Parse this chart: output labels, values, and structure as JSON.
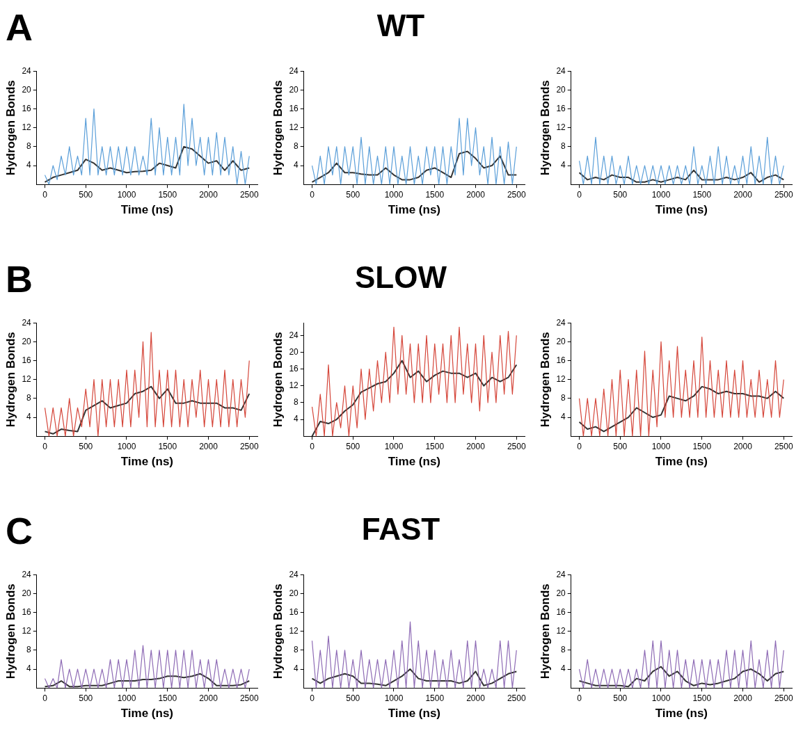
{
  "chart_data": [
    {
      "type": "line",
      "annotations": [
        "A"
      ],
      "xlabel": "Time (ns)",
      "ylabel": "Hydrogen Bonds",
      "xlim": [
        -100,
        2600
      ],
      "ylim": [
        0,
        24
      ],
      "xticks": [
        0,
        500,
        1000,
        1500,
        2000,
        2500
      ],
      "yticks": [
        4,
        8,
        12,
        16,
        20,
        24
      ],
      "grid": false,
      "legend": false,
      "marker": "none",
      "line_style": "solid",
      "x": [
        0,
        50,
        100,
        150,
        200,
        250,
        300,
        350,
        400,
        450,
        500,
        550,
        600,
        650,
        700,
        750,
        800,
        850,
        900,
        950,
        1000,
        1050,
        1100,
        1150,
        1200,
        1250,
        1300,
        1350,
        1400,
        1450,
        1500,
        1550,
        1600,
        1650,
        1700,
        1750,
        1800,
        1850,
        1900,
        1950,
        2000,
        2050,
        2100,
        2150,
        2200,
        2250,
        2300,
        2350,
        2400,
        2450,
        2500
      ],
      "series": [
        {
          "color": "#5b9fd9",
          "values": [
            2,
            0,
            4,
            1,
            6,
            2,
            8,
            2,
            6,
            2,
            14,
            2,
            16,
            2,
            8,
            2,
            8,
            2,
            8,
            2,
            8,
            2,
            8,
            2,
            6,
            2,
            14,
            2,
            12,
            2,
            10,
            2,
            10,
            2,
            17,
            4,
            14,
            4,
            10,
            2,
            10,
            2,
            11,
            2,
            10,
            2,
            8,
            0,
            7,
            0,
            6
          ]
        },
        {
          "color": "#333333",
          "x": [
            0,
            100,
            200,
            300,
            400,
            500,
            600,
            700,
            800,
            900,
            1000,
            1100,
            1200,
            1300,
            1400,
            1500,
            1600,
            1700,
            1800,
            1900,
            2000,
            2100,
            2200,
            2300,
            2400,
            2500
          ],
          "values": [
            0.5,
            1.5,
            2,
            2.5,
            3,
            5.3,
            4.5,
            3,
            3.5,
            3,
            2.5,
            2.7,
            2.8,
            3,
            4.5,
            4,
            3.5,
            8,
            7.5,
            6,
            4.5,
            5,
            3,
            5,
            3,
            3.5
          ]
        }
      ]
    },
    {
      "type": "line",
      "title": "WT",
      "xlabel": "Time (ns)",
      "ylabel": "Hydrogen Bonds",
      "xlim": [
        -100,
        2600
      ],
      "ylim": [
        0,
        24
      ],
      "xticks": [
        0,
        500,
        1000,
        1500,
        2000,
        2500
      ],
      "yticks": [
        4,
        8,
        12,
        16,
        20,
        24
      ],
      "grid": false,
      "legend": false,
      "marker": "none",
      "line_style": "solid",
      "x": [
        0,
        50,
        100,
        150,
        200,
        250,
        300,
        350,
        400,
        450,
        500,
        550,
        600,
        650,
        700,
        750,
        800,
        850,
        900,
        950,
        1000,
        1050,
        1100,
        1150,
        1200,
        1250,
        1300,
        1350,
        1400,
        1450,
        1500,
        1550,
        1600,
        1650,
        1700,
        1750,
        1800,
        1850,
        1900,
        1950,
        2000,
        2050,
        2100,
        2150,
        2200,
        2250,
        2300,
        2350,
        2400,
        2450,
        2500
      ],
      "series": [
        {
          "color": "#5b9fd9",
          "values": [
            4,
            0,
            6,
            0,
            8,
            2,
            8,
            0,
            8,
            2,
            8,
            0,
            10,
            0,
            8,
            0,
            6,
            0,
            8,
            0,
            8,
            0,
            6,
            0,
            8,
            0,
            6,
            0,
            8,
            2,
            8,
            0,
            8,
            0,
            8,
            2,
            14,
            2,
            14,
            4,
            12,
            2,
            8,
            0,
            10,
            0,
            8,
            0,
            9,
            0,
            8
          ]
        },
        {
          "color": "#333333",
          "x": [
            0,
            100,
            200,
            300,
            400,
            500,
            600,
            700,
            800,
            900,
            1000,
            1100,
            1200,
            1300,
            1400,
            1500,
            1600,
            1700,
            1800,
            1900,
            2000,
            2100,
            2200,
            2300,
            2400,
            2500
          ],
          "values": [
            0.5,
            1.5,
            2.5,
            4.5,
            2.5,
            2.5,
            2.2,
            2,
            2,
            3.5,
            2,
            1,
            1,
            1.5,
            3,
            3.5,
            2.5,
            1.5,
            6.5,
            7,
            5.5,
            3.5,
            4,
            6,
            2,
            2
          ]
        }
      ]
    },
    {
      "type": "line",
      "xlabel": "Time (ns)",
      "ylabel": "Hydrogen Bonds",
      "xlim": [
        -100,
        2600
      ],
      "ylim": [
        0,
        24
      ],
      "xticks": [
        0,
        500,
        1000,
        1500,
        2000,
        2500
      ],
      "yticks": [
        4,
        8,
        12,
        16,
        20,
        24
      ],
      "grid": false,
      "legend": false,
      "marker": "none",
      "line_style": "solid",
      "x": [
        0,
        50,
        100,
        150,
        200,
        250,
        300,
        350,
        400,
        450,
        500,
        550,
        600,
        650,
        700,
        750,
        800,
        850,
        900,
        950,
        1000,
        1050,
        1100,
        1150,
        1200,
        1250,
        1300,
        1350,
        1400,
        1450,
        1500,
        1550,
        1600,
        1650,
        1700,
        1750,
        1800,
        1850,
        1900,
        1950,
        2000,
        2050,
        2100,
        2150,
        2200,
        2250,
        2300,
        2350,
        2400,
        2450,
        2500
      ],
      "series": [
        {
          "color": "#5b9fd9",
          "values": [
            5,
            0,
            6,
            0,
            10,
            0,
            6,
            0,
            6,
            0,
            4,
            0,
            6,
            0,
            4,
            0,
            4,
            0,
            4,
            0,
            4,
            0,
            4,
            0,
            4,
            0,
            4,
            0,
            8,
            0,
            4,
            0,
            6,
            0,
            8,
            0,
            6,
            0,
            4,
            0,
            6,
            0,
            8,
            0,
            6,
            0,
            10,
            0,
            6,
            0,
            4
          ]
        },
        {
          "color": "#333333",
          "x": [
            0,
            100,
            200,
            300,
            400,
            500,
            600,
            700,
            800,
            900,
            1000,
            1100,
            1200,
            1300,
            1400,
            1500,
            1600,
            1700,
            1800,
            1900,
            2000,
            2100,
            2200,
            2300,
            2400,
            2500
          ],
          "values": [
            2.5,
            1,
            1.5,
            1,
            2,
            1.5,
            1.5,
            0.5,
            0.5,
            1,
            0.5,
            1,
            1.5,
            1,
            3,
            1,
            1,
            1,
            1.5,
            1,
            1.5,
            2.5,
            0.5,
            1.5,
            2,
            1
          ]
        }
      ]
    },
    {
      "type": "line",
      "annotations": [
        "B"
      ],
      "xlabel": "Time (ns)",
      "ylabel": "Hydrogen Bonds",
      "xlim": [
        -100,
        2600
      ],
      "ylim": [
        0,
        24
      ],
      "xticks": [
        0,
        500,
        1000,
        1500,
        2000,
        2500
      ],
      "yticks": [
        4,
        8,
        12,
        16,
        20,
        24
      ],
      "grid": false,
      "legend": false,
      "marker": "none",
      "line_style": "solid",
      "x": [
        0,
        50,
        100,
        150,
        200,
        250,
        300,
        350,
        400,
        450,
        500,
        550,
        600,
        650,
        700,
        750,
        800,
        850,
        900,
        950,
        1000,
        1050,
        1100,
        1150,
        1200,
        1250,
        1300,
        1350,
        1400,
        1450,
        1500,
        1550,
        1600,
        1650,
        1700,
        1750,
        1800,
        1850,
        1900,
        1950,
        2000,
        2050,
        2100,
        2150,
        2200,
        2250,
        2300,
        2350,
        2400,
        2450,
        2500
      ],
      "series": [
        {
          "color": "#d5463a",
          "values": [
            6,
            0,
            6,
            0,
            6,
            0,
            8,
            0,
            6,
            2,
            10,
            2,
            12,
            0,
            12,
            2,
            12,
            2,
            12,
            2,
            14,
            2,
            14,
            4,
            20,
            2,
            22,
            2,
            14,
            2,
            14,
            2,
            14,
            2,
            12,
            2,
            12,
            4,
            14,
            2,
            12,
            2,
            12,
            2,
            14,
            2,
            12,
            2,
            12,
            4,
            16
          ]
        },
        {
          "color": "#333333",
          "x": [
            0,
            100,
            200,
            300,
            400,
            500,
            600,
            700,
            800,
            900,
            1000,
            1100,
            1200,
            1300,
            1400,
            1500,
            1600,
            1700,
            1800,
            1900,
            2000,
            2100,
            2200,
            2300,
            2400,
            2500
          ],
          "values": [
            1,
            0.5,
            1.5,
            1.2,
            1,
            5.5,
            6.5,
            7.5,
            6,
            6.5,
            7,
            9,
            9.5,
            10.5,
            8,
            10,
            7,
            7,
            7.5,
            7,
            7,
            7,
            6,
            6,
            5.5,
            9
          ]
        }
      ]
    },
    {
      "type": "line",
      "title": "SLOW",
      "xlabel": "Time (ns)",
      "ylabel": "Hydrogen Bonds",
      "xlim": [
        -100,
        2600
      ],
      "ylim": [
        0,
        27
      ],
      "xticks": [
        0,
        500,
        1000,
        1500,
        2000,
        2500
      ],
      "yticks": [
        4,
        8,
        12,
        16,
        20,
        24
      ],
      "grid": false,
      "legend": false,
      "marker": "none",
      "line_style": "solid",
      "x": [
        0,
        50,
        100,
        150,
        200,
        250,
        300,
        350,
        400,
        450,
        500,
        550,
        600,
        650,
        700,
        750,
        800,
        850,
        900,
        950,
        1000,
        1050,
        1100,
        1150,
        1200,
        1250,
        1300,
        1350,
        1400,
        1450,
        1500,
        1550,
        1600,
        1650,
        1700,
        1750,
        1800,
        1850,
        1900,
        1950,
        2000,
        2050,
        2100,
        2150,
        2200,
        2250,
        2300,
        2350,
        2400,
        2450,
        2500
      ],
      "series": [
        {
          "color": "#d5463a",
          "values": [
            7,
            0,
            10,
            0,
            17,
            0,
            8,
            2,
            12,
            0,
            12,
            2,
            16,
            4,
            16,
            6,
            18,
            8,
            20,
            8,
            26,
            10,
            24,
            10,
            22,
            8,
            22,
            8,
            24,
            8,
            22,
            10,
            22,
            8,
            24,
            8,
            26,
            10,
            22,
            8,
            22,
            6,
            24,
            8,
            20,
            8,
            24,
            10,
            25,
            10,
            24
          ]
        },
        {
          "color": "#333333",
          "x": [
            0,
            100,
            200,
            300,
            400,
            500,
            600,
            700,
            800,
            900,
            1000,
            1100,
            1200,
            1300,
            1400,
            1500,
            1600,
            1700,
            1800,
            1900,
            2000,
            2100,
            2200,
            2300,
            2400,
            2500
          ],
          "values": [
            0,
            3.5,
            3,
            4,
            6,
            7.5,
            10.5,
            11.5,
            12.5,
            13,
            15,
            18,
            14,
            15.5,
            13,
            14.5,
            15.5,
            15,
            15,
            14,
            15,
            12,
            14,
            13,
            14,
            17
          ]
        }
      ]
    },
    {
      "type": "line",
      "xlabel": "Time (ns)",
      "ylabel": "Hydrogen Bonds",
      "xlim": [
        -100,
        2600
      ],
      "ylim": [
        0,
        24
      ],
      "xticks": [
        0,
        500,
        1000,
        1500,
        2000,
        2500
      ],
      "yticks": [
        4,
        8,
        12,
        16,
        20,
        24
      ],
      "grid": false,
      "legend": false,
      "marker": "none",
      "line_style": "solid",
      "x": [
        0,
        50,
        100,
        150,
        200,
        250,
        300,
        350,
        400,
        450,
        500,
        550,
        600,
        650,
        700,
        750,
        800,
        850,
        900,
        950,
        1000,
        1050,
        1100,
        1150,
        1200,
        1250,
        1300,
        1350,
        1400,
        1450,
        1500,
        1550,
        1600,
        1650,
        1700,
        1750,
        1800,
        1850,
        1900,
        1950,
        2000,
        2050,
        2100,
        2150,
        2200,
        2250,
        2300,
        2350,
        2400,
        2450,
        2500
      ],
      "series": [
        {
          "color": "#d5463a",
          "values": [
            8,
            0,
            8,
            0,
            8,
            0,
            10,
            0,
            12,
            0,
            14,
            0,
            12,
            0,
            14,
            0,
            18,
            0,
            14,
            2,
            20,
            4,
            16,
            4,
            19,
            4,
            14,
            4,
            16,
            4,
            21,
            4,
            16,
            4,
            14,
            4,
            16,
            4,
            14,
            4,
            16,
            4,
            12,
            4,
            14,
            4,
            12,
            4,
            16,
            4,
            12
          ]
        },
        {
          "color": "#333333",
          "x": [
            0,
            100,
            200,
            300,
            400,
            500,
            600,
            700,
            800,
            900,
            1000,
            1100,
            1200,
            1300,
            1400,
            1500,
            1600,
            1700,
            1800,
            1900,
            2000,
            2100,
            2200,
            2300,
            2400,
            2500
          ],
          "values": [
            3,
            1.5,
            2,
            1,
            2,
            3,
            4,
            6,
            5,
            4,
            4.5,
            8.5,
            8,
            7.5,
            8.5,
            10.5,
            10,
            9,
            9.5,
            9,
            9,
            8.5,
            8.5,
            8,
            9.5,
            8
          ]
        }
      ]
    },
    {
      "type": "line",
      "annotations": [
        "C"
      ],
      "xlabel": "Time (ns)",
      "ylabel": "Hydrogen Bonds",
      "xlim": [
        -100,
        2600
      ],
      "ylim": [
        0,
        24
      ],
      "xticks": [
        0,
        500,
        1000,
        1500,
        2000,
        2500
      ],
      "yticks": [
        4,
        8,
        12,
        16,
        20,
        24
      ],
      "grid": false,
      "legend": false,
      "marker": "none",
      "line_style": "solid",
      "x": [
        0,
        50,
        100,
        150,
        200,
        250,
        300,
        350,
        400,
        450,
        500,
        550,
        600,
        650,
        700,
        750,
        800,
        850,
        900,
        950,
        1000,
        1050,
        1100,
        1150,
        1200,
        1250,
        1300,
        1350,
        1400,
        1450,
        1500,
        1550,
        1600,
        1650,
        1700,
        1750,
        1800,
        1850,
        1900,
        1950,
        2000,
        2050,
        2100,
        2150,
        2200,
        2250,
        2300,
        2350,
        2400,
        2450,
        2500
      ],
      "series": [
        {
          "color": "#8e6bb5",
          "values": [
            2,
            0,
            2,
            0,
            6,
            0,
            4,
            0,
            4,
            0,
            4,
            0,
            4,
            0,
            4,
            0,
            6,
            0,
            6,
            0,
            6,
            0,
            8,
            0,
            9,
            0,
            8,
            0,
            8,
            0,
            8,
            0,
            8,
            0,
            8,
            0,
            8,
            0,
            6,
            0,
            6,
            0,
            6,
            0,
            4,
            0,
            4,
            0,
            4,
            0,
            4
          ]
        },
        {
          "color": "#333333",
          "x": [
            0,
            100,
            200,
            300,
            400,
            500,
            600,
            700,
            800,
            900,
            1000,
            1100,
            1200,
            1300,
            1400,
            1500,
            1600,
            1700,
            1800,
            1900,
            2000,
            2100,
            2200,
            2300,
            2400,
            2500
          ],
          "values": [
            0.3,
            0.5,
            1.5,
            0.3,
            0.3,
            0.5,
            0.5,
            0.5,
            1,
            1.5,
            1.5,
            1.5,
            1.8,
            1.8,
            2,
            2.5,
            2.5,
            2.2,
            2.5,
            3,
            2,
            0.5,
            0.5,
            0.5,
            0.7,
            1.5
          ]
        }
      ]
    },
    {
      "type": "line",
      "title": "FAST",
      "xlabel": "Time (ns)",
      "ylabel": "Hydrogen Bonds",
      "xlim": [
        -100,
        2600
      ],
      "ylim": [
        0,
        24
      ],
      "xticks": [
        0,
        500,
        1000,
        1500,
        2000,
        2500
      ],
      "yticks": [
        4,
        8,
        12,
        16,
        20,
        24
      ],
      "grid": false,
      "legend": false,
      "marker": "none",
      "line_style": "solid",
      "x": [
        0,
        50,
        100,
        150,
        200,
        250,
        300,
        350,
        400,
        450,
        500,
        550,
        600,
        650,
        700,
        750,
        800,
        850,
        900,
        950,
        1000,
        1050,
        1100,
        1150,
        1200,
        1250,
        1300,
        1350,
        1400,
        1450,
        1500,
        1550,
        1600,
        1650,
        1700,
        1750,
        1800,
        1850,
        1900,
        1950,
        2000,
        2050,
        2100,
        2150,
        2200,
        2250,
        2300,
        2350,
        2400,
        2450,
        2500
      ],
      "series": [
        {
          "color": "#8e6bb5",
          "values": [
            10,
            0,
            8,
            0,
            11,
            0,
            8,
            0,
            8,
            0,
            6,
            0,
            8,
            0,
            6,
            0,
            6,
            0,
            6,
            0,
            8,
            0,
            10,
            0,
            14,
            0,
            10,
            0,
            8,
            0,
            8,
            0,
            6,
            0,
            8,
            0,
            6,
            0,
            10,
            0,
            10,
            0,
            4,
            0,
            4,
            0,
            10,
            0,
            10,
            0,
            8
          ]
        },
        {
          "color": "#333333",
          "x": [
            0,
            100,
            200,
            300,
            400,
            500,
            600,
            700,
            800,
            900,
            1000,
            1100,
            1200,
            1300,
            1400,
            1500,
            1600,
            1700,
            1800,
            1900,
            2000,
            2100,
            2200,
            2300,
            2400,
            2500
          ],
          "values": [
            2,
            1,
            2,
            2.5,
            3,
            2.5,
            1,
            1,
            0.8,
            0.5,
            1.5,
            2.5,
            4,
            2,
            1.5,
            1.5,
            1.5,
            1.5,
            1,
            1.5,
            3.5,
            0.5,
            1,
            2,
            3,
            3.5
          ]
        }
      ]
    },
    {
      "type": "line",
      "xlabel": "Time (ns)",
      "ylabel": "Hydrogen Bonds",
      "xlim": [
        -100,
        2600
      ],
      "ylim": [
        0,
        24
      ],
      "xticks": [
        0,
        500,
        1000,
        1500,
        2000,
        2500
      ],
      "yticks": [
        4,
        8,
        12,
        16,
        20,
        24
      ],
      "grid": false,
      "legend": false,
      "marker": "none",
      "line_style": "solid",
      "x": [
        0,
        50,
        100,
        150,
        200,
        250,
        300,
        350,
        400,
        450,
        500,
        550,
        600,
        650,
        700,
        750,
        800,
        850,
        900,
        950,
        1000,
        1050,
        1100,
        1150,
        1200,
        1250,
        1300,
        1350,
        1400,
        1450,
        1500,
        1550,
        1600,
        1650,
        1700,
        1750,
        1800,
        1850,
        1900,
        1950,
        2000,
        2050,
        2100,
        2150,
        2200,
        2250,
        2300,
        2350,
        2400,
        2450,
        2500
      ],
      "series": [
        {
          "color": "#8e6bb5",
          "values": [
            4,
            0,
            6,
            0,
            4,
            0,
            4,
            0,
            4,
            0,
            4,
            0,
            4,
            0,
            4,
            0,
            8,
            0,
            10,
            0,
            10,
            0,
            8,
            0,
            8,
            0,
            6,
            0,
            6,
            0,
            6,
            0,
            6,
            0,
            6,
            0,
            8,
            0,
            8,
            0,
            8,
            0,
            10,
            0,
            6,
            0,
            8,
            0,
            10,
            0,
            8
          ]
        },
        {
          "color": "#333333",
          "x": [
            0,
            100,
            200,
            300,
            400,
            500,
            600,
            700,
            800,
            900,
            1000,
            1100,
            1200,
            1300,
            1400,
            1500,
            1600,
            1700,
            1800,
            1900,
            2000,
            2100,
            2200,
            2300,
            2400,
            2500
          ],
          "values": [
            1.5,
            1,
            0.5,
            0.5,
            0.5,
            0.5,
            0.3,
            2,
            1.5,
            3.5,
            4.5,
            2.5,
            3.5,
            1.5,
            0.5,
            1,
            0.7,
            1,
            1.5,
            2,
            3.5,
            4,
            3,
            1.5,
            3,
            3.5
          ]
        }
      ]
    }
  ]
}
